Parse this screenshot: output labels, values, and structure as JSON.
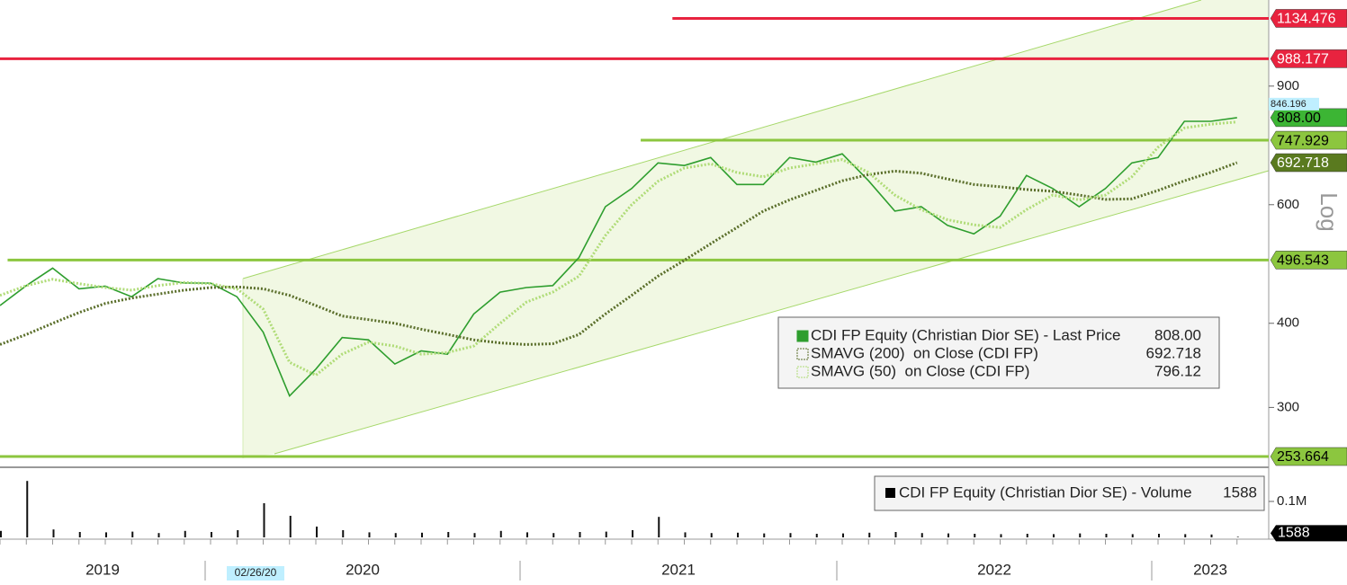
{
  "chart_data": {
    "type": "line",
    "log_scale": true,
    "ylim": [
      246,
      1208
    ],
    "yticks": [
      300,
      400,
      600,
      900
    ],
    "y_axis_label": "Log",
    "x_labels": [
      "2019",
      "2020",
      "2021",
      "2022",
      "2023"
    ],
    "highlight_date": "02/26/20",
    "series": [
      {
        "name": "CDI FP Equity (Christian Dior SE) - Last Price",
        "color": "#2e9e2e",
        "style": "solid",
        "last_label": {
          "value": 808,
          "label": "808.00"
        },
        "values": [
          425,
          455,
          483,
          450,
          454,
          438,
          466,
          459,
          459,
          438,
          388,
          312,
          342,
          381,
          378,
          348,
          364,
          360,
          413,
          445,
          452,
          455,
          501,
          596,
          634,
          692,
          686,
          705,
          643,
          643,
          705,
          694,
          714,
          651,
          587,
          596,
          559,
          543,
          577,
          663,
          634,
          596,
          634,
          692,
          705,
          798,
          798,
          808
        ]
      },
      {
        "name": "SMAVG (200)  on Close (CDI FP)",
        "color": "#5a6e2a",
        "style": "dotted",
        "last_label": {
          "value": 692.718,
          "label": "692.718"
        },
        "values": [
          372,
          385,
          400,
          415,
          428,
          436,
          442,
          448,
          452,
          453,
          450,
          440,
          425,
          410,
          405,
          400,
          392,
          385,
          378,
          374,
          372,
          373,
          385,
          413,
          440,
          470,
          496,
          525,
          555,
          587,
          610,
          630,
          651,
          665,
          673,
          668,
          655,
          643,
          638,
          632,
          628,
          620,
          611,
          612,
          630,
          651,
          670,
          692.718
        ]
      },
      {
        "name": "SMAVG (50)  on Close (CDI FP)",
        "color": "#b0dc78",
        "style": "dotted",
        "last_label": {
          "value": 796.12,
          "label": "796.12"
        },
        "values": [
          440,
          455,
          465,
          458,
          452,
          448,
          455,
          460,
          458,
          450,
          420,
          350,
          335,
          360,
          375,
          370,
          360,
          362,
          370,
          400,
          430,
          445,
          470,
          540,
          600,
          650,
          680,
          690,
          670,
          660,
          680,
          690,
          700,
          670,
          620,
          590,
          570,
          560,
          555,
          590,
          620,
          610,
          620,
          660,
          730,
          780,
          790,
          796.12
        ]
      }
    ],
    "levels": [
      {
        "value": 1134.476,
        "color": "#e8233f",
        "start": 0.53
      },
      {
        "value": 988.177,
        "color": "#e8233f",
        "start": 0
      },
      {
        "value": 747.929,
        "color": "#8cc63f",
        "start": 0.505
      },
      {
        "value": 496.543,
        "color": "#8cc63f",
        "start": 0.006
      },
      {
        "value": 253.664,
        "color": "#8cc63f",
        "start": 0
      }
    ],
    "high_marker": 846.196,
    "volume": {
      "name": "CDI FP Equity (Christian Dior SE) - Volume",
      "last_label": {
        "value": 1588,
        "label": "1588"
      },
      "ylim": [
        0,
        182500
      ],
      "yticks": [
        {
          "value": 100000,
          "label": "0.1M"
        }
      ],
      "values": [
        18000,
        157000,
        22000,
        15000,
        14000,
        16000,
        12000,
        18000,
        15000,
        20000,
        95000,
        60000,
        30000,
        20000,
        14000,
        12000,
        13000,
        15000,
        12000,
        18000,
        14000,
        12000,
        15000,
        16000,
        20000,
        57000,
        14000,
        12000,
        13000,
        11000,
        12000,
        10000,
        11000,
        13000,
        15000,
        12000,
        11000,
        10000,
        9000,
        10000,
        9000,
        11000,
        10000,
        9000,
        10000,
        9000,
        8000,
        1588
      ]
    }
  }
}
